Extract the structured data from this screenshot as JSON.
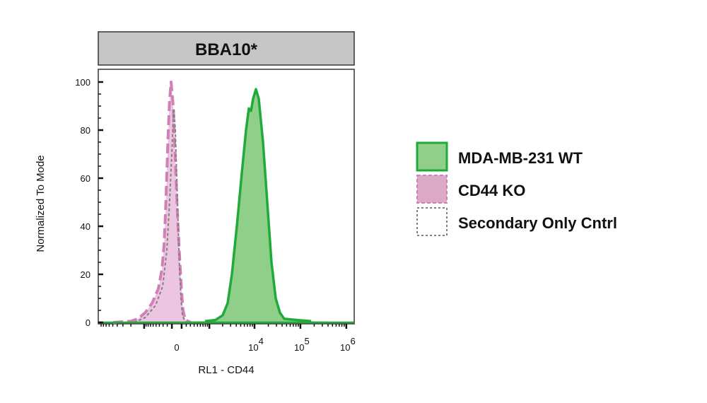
{
  "chart_data": {
    "type": "area",
    "title": "BBA10*",
    "xlabel": "RL1 - CD44",
    "ylabel": "Normalized To Mode",
    "x_scale": "biexponential",
    "ylim": [
      0,
      100
    ],
    "yticks": [
      0,
      20,
      40,
      60,
      80,
      100
    ],
    "xticks": [
      {
        "value": 0,
        "base": "0",
        "exp": ""
      },
      {
        "value": 10000,
        "base": "10",
        "exp": "4"
      },
      {
        "value": 100000,
        "base": "10",
        "exp": "5"
      },
      {
        "value": 1000000,
        "base": "10",
        "exp": "6"
      }
    ],
    "legend_position": "right",
    "series": [
      {
        "name": "MDA-MB-231 WT",
        "stroke": "#1faa3a",
        "fill": "#8fcf8a",
        "dash": "solid",
        "x": [
          790,
          1390,
          2010,
          2590,
          3210,
          4110,
          5280,
          6530,
          7520,
          8380,
          9320,
          10730,
          12390,
          15320,
          18960,
          23450,
          29000,
          35900,
          44400,
          84200,
          171000
        ],
        "y": [
          0.5,
          1,
          3,
          8,
          20,
          40,
          62,
          80,
          89,
          88,
          93,
          97,
          93,
          75,
          50,
          25,
          10,
          4,
          1.5,
          1,
          0.5
        ]
      },
      {
        "name": "CD44 KO",
        "stroke": "#d27fb8",
        "fill": "#ecc6e0",
        "dash": "dashed",
        "x": [
          -4900,
          -2010,
          -1390,
          -950,
          -640,
          -430,
          -330,
          -277,
          -242,
          -210,
          -180,
          -150,
          -117,
          -72,
          -43,
          -14,
          14,
          43,
          72,
          101,
          130,
          180,
          310
        ],
        "y": [
          0,
          0.5,
          1.5,
          4,
          8,
          14,
          22,
          32,
          45,
          62,
          78,
          92,
          100,
          90,
          75,
          60,
          45,
          33,
          22,
          12,
          5,
          1,
          0
        ]
      },
      {
        "name": "Secondary Only Cntrl",
        "stroke": "#808080",
        "fill": "none",
        "dash": "dotted",
        "x": [
          -1680,
          -950,
          -520,
          -310,
          -210,
          -150,
          -101,
          -72,
          -58,
          -29,
          0,
          29,
          58,
          87,
          117,
          180
        ],
        "y": [
          0,
          2,
          7,
          15,
          30,
          50,
          70,
          85,
          89,
          80,
          60,
          40,
          22,
          10,
          3,
          0
        ]
      }
    ]
  }
}
